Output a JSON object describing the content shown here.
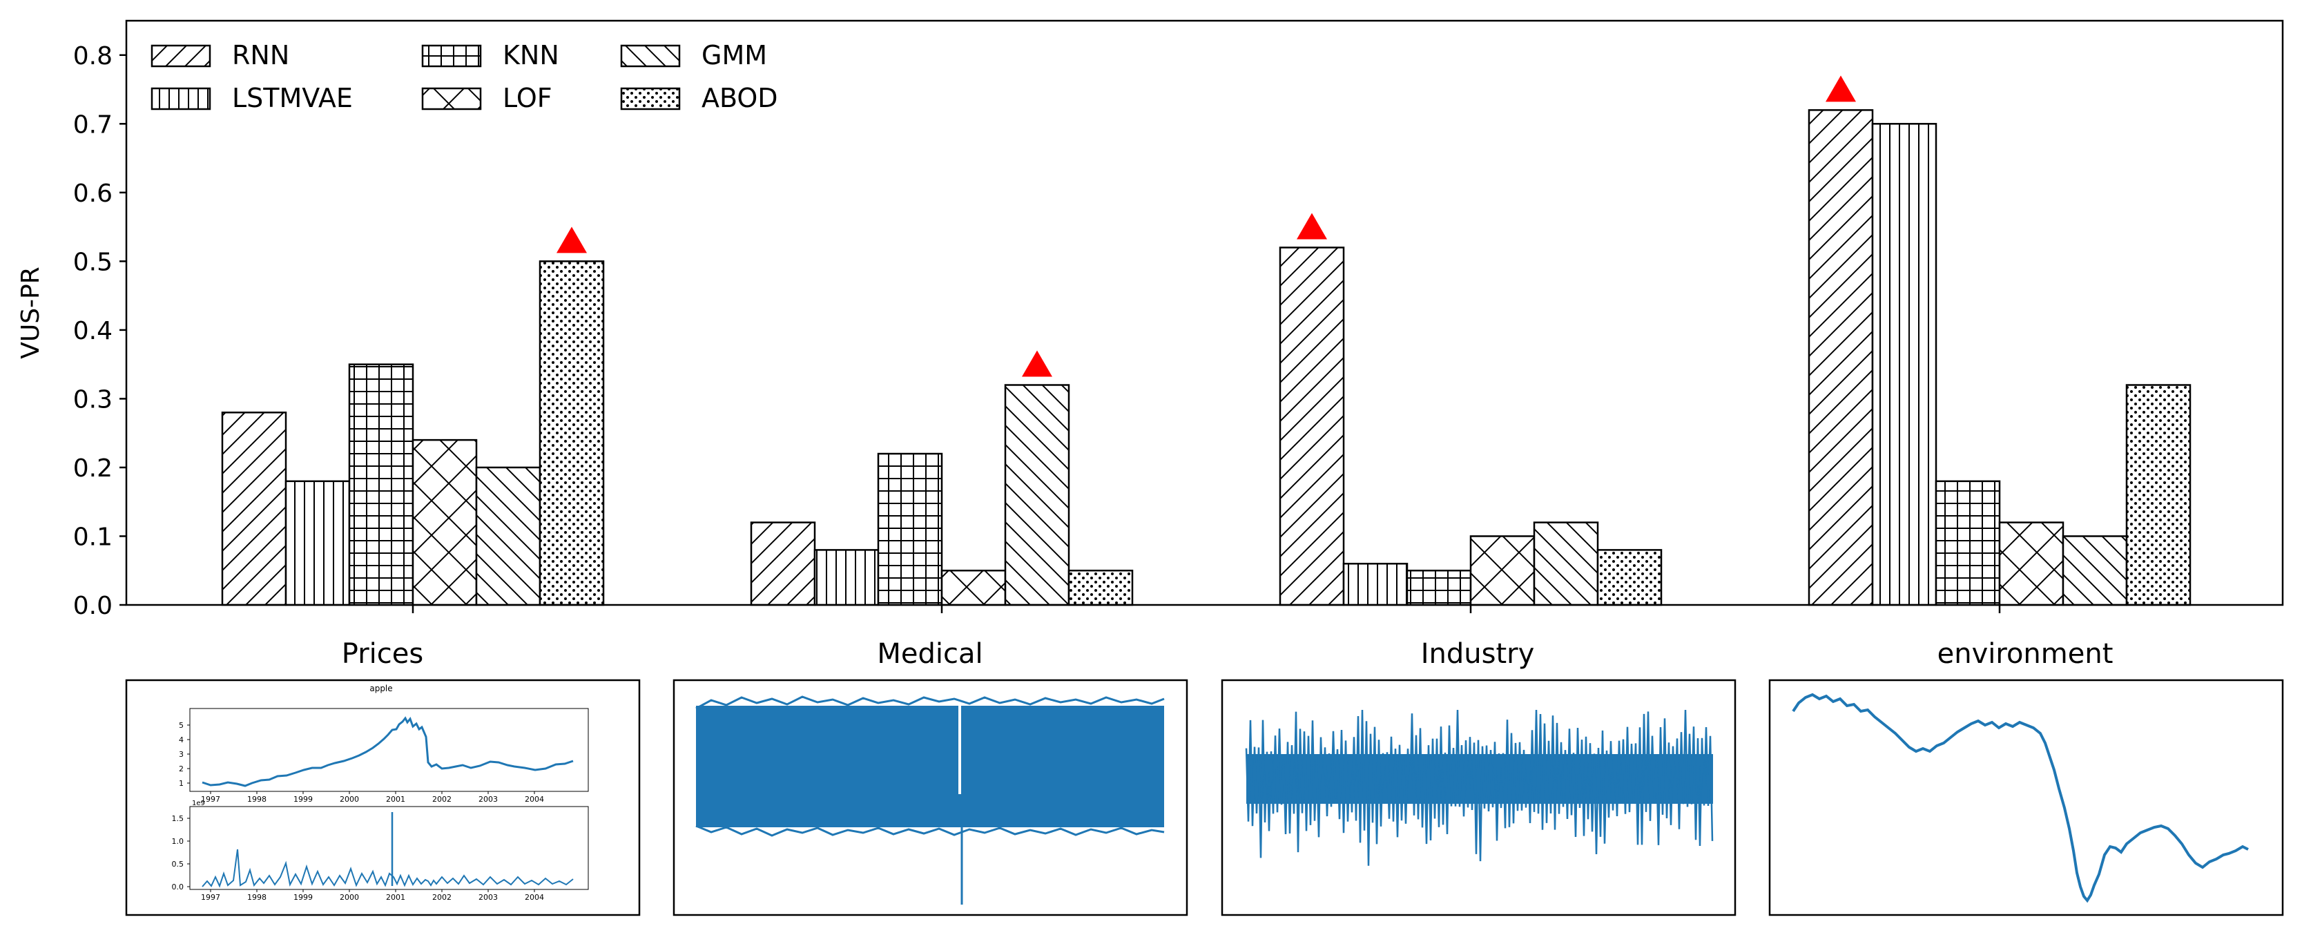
{
  "chart_data": {
    "type": "bar",
    "ylabel": "VUS-PR",
    "ylim": [
      0,
      0.85
    ],
    "yticks": [
      0.0,
      0.1,
      0.2,
      0.3,
      0.4,
      0.5,
      0.6,
      0.7,
      0.8
    ],
    "ytick_labels": [
      "0.0",
      "0.1",
      "0.2",
      "0.3",
      "0.4",
      "0.5",
      "0.6",
      "0.7",
      "0.8"
    ],
    "categories": [
      "Prices",
      "Medical",
      "Industry",
      "environment"
    ],
    "legend": {
      "placement": "top-left",
      "columns": 3
    },
    "series": [
      {
        "name": "RNN",
        "hatch": "diag-up",
        "values": [
          0.28,
          0.12,
          0.52,
          0.72
        ]
      },
      {
        "name": "LSTMVAE",
        "hatch": "vertical",
        "values": [
          0.18,
          0.08,
          0.06,
          0.7
        ]
      },
      {
        "name": "KNN",
        "hatch": "grid",
        "values": [
          0.35,
          0.22,
          0.05,
          0.18
        ]
      },
      {
        "name": "LOF",
        "hatch": "cross",
        "values": [
          0.24,
          0.05,
          0.1,
          0.12
        ]
      },
      {
        "name": "GMM",
        "hatch": "diag-down",
        "values": [
          0.2,
          0.32,
          0.12,
          0.1
        ]
      },
      {
        "name": "ABOD",
        "hatch": "dots",
        "values": [
          0.5,
          0.05,
          0.08,
          0.32
        ]
      }
    ],
    "best_marker": {
      "shape": "triangle",
      "color": "#ff0000"
    }
  },
  "thumbnails": [
    {
      "title": "Prices",
      "inner_title": "apple",
      "top_yticks": [
        "1",
        "2",
        "3",
        "4",
        "5"
      ],
      "bottom_yticks": [
        "0.0",
        "0.5",
        "1.0",
        "1.5"
      ],
      "bottom_exponent": "1e9",
      "xticks": [
        "1997",
        "1998",
        "1999",
        "2000",
        "2001",
        "2002",
        "2003",
        "2004"
      ]
    },
    {
      "title": "Medical"
    },
    {
      "title": "Industry"
    },
    {
      "title": "environment"
    }
  ],
  "colors": {
    "line": "#1f77b4",
    "marker": "#ff0000",
    "axis": "#000000"
  }
}
